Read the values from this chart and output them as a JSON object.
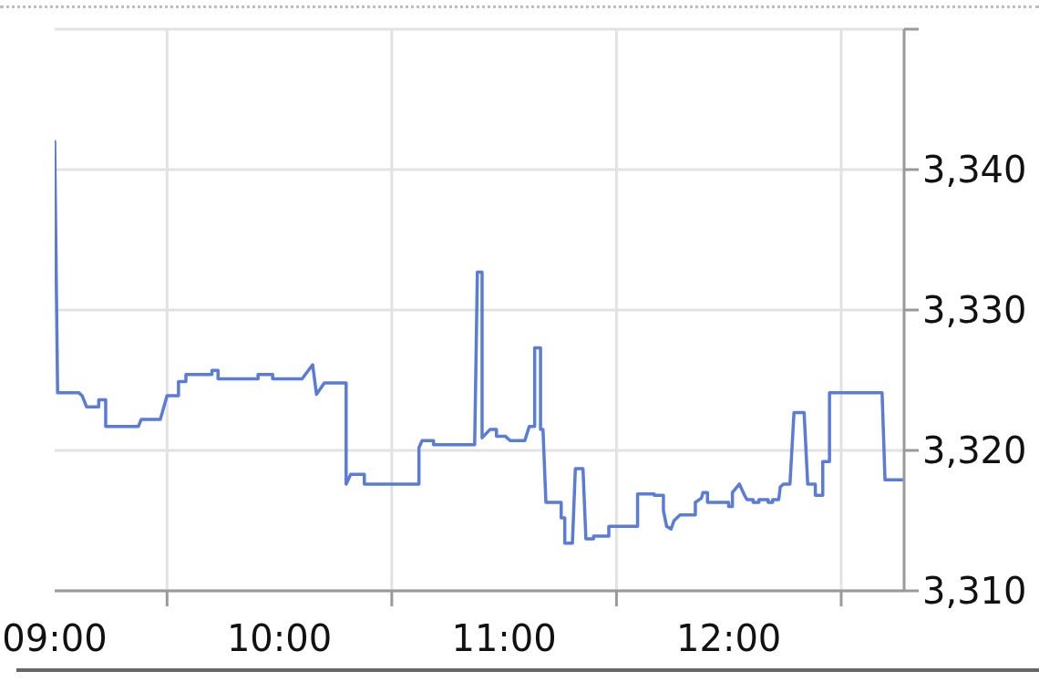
{
  "chart_data": {
    "type": "line",
    "color": "#5a7bd6",
    "marker": "none",
    "line_style": "solid",
    "grid": true,
    "x": [
      9.0,
      9.013,
      9.108,
      9.122,
      9.142,
      9.196,
      9.196,
      9.227,
      9.227,
      9.372,
      9.385,
      9.47,
      9.5,
      9.551,
      9.551,
      9.584,
      9.584,
      9.7,
      9.7,
      9.727,
      9.727,
      9.905,
      9.905,
      9.97,
      9.97,
      10.101,
      10.148,
      10.165,
      10.2,
      10.297,
      10.297,
      10.317,
      10.378,
      10.378,
      10.621,
      10.621,
      10.635,
      10.686,
      10.686,
      10.869,
      10.881,
      10.902,
      10.902,
      10.938,
      10.966,
      10.966,
      11.006,
      11.027,
      11.092,
      11.112,
      11.136,
      11.136,
      11.162,
      11.162,
      11.173,
      11.186,
      11.254,
      11.254,
      11.27,
      11.27,
      11.304,
      11.317,
      11.351,
      11.364,
      11.398,
      11.398,
      11.466,
      11.466,
      11.594,
      11.594,
      11.668,
      11.668,
      11.709,
      11.709,
      11.723,
      11.743,
      11.756,
      11.783,
      11.851,
      11.851,
      11.878,
      11.885,
      11.905,
      11.905,
      11.999,
      11.999,
      12.016,
      12.016,
      12.047,
      12.07,
      12.081,
      12.108,
      12.108,
      12.134,
      12.134,
      12.175,
      12.175,
      12.195,
      12.195,
      12.222,
      12.229,
      12.243,
      12.272,
      12.29,
      12.335,
      12.351,
      12.385,
      12.385,
      12.418,
      12.418,
      12.448,
      12.448,
      12.682,
      12.695,
      12.777
    ],
    "values": [
      3342.0,
      3324.1,
      3324.1,
      3323.9,
      3323.1,
      3323.1,
      3323.6,
      3323.6,
      3321.7,
      3321.7,
      3322.2,
      3322.2,
      3323.9,
      3323.9,
      3324.9,
      3324.9,
      3325.4,
      3325.4,
      3325.7,
      3325.7,
      3325.1,
      3325.1,
      3325.4,
      3325.4,
      3325.1,
      3325.1,
      3326.1,
      3324.0,
      3324.8,
      3324.8,
      3317.6,
      3318.3,
      3318.3,
      3317.6,
      3317.6,
      3320.2,
      3320.7,
      3320.7,
      3320.4,
      3320.4,
      3332.7,
      3332.7,
      3320.9,
      3321.5,
      3321.5,
      3321.0,
      3321.0,
      3320.7,
      3320.7,
      3321.7,
      3321.7,
      3327.3,
      3327.3,
      3321.5,
      3321.5,
      3316.3,
      3316.3,
      3315.2,
      3315.2,
      3313.4,
      3313.4,
      3318.7,
      3318.7,
      3313.7,
      3313.7,
      3313.9,
      3313.9,
      3314.6,
      3314.6,
      3316.9,
      3316.9,
      3316.8,
      3316.8,
      3315.7,
      3314.6,
      3314.4,
      3315.0,
      3315.4,
      3315.4,
      3316.3,
      3316.6,
      3317.0,
      3317.0,
      3316.3,
      3316.3,
      3316.0,
      3316.0,
      3317.0,
      3317.6,
      3316.8,
      3316.5,
      3316.5,
      3316.3,
      3316.3,
      3316.5,
      3316.5,
      3316.3,
      3316.3,
      3316.5,
      3316.5,
      3317.4,
      3317.6,
      3317.6,
      3322.7,
      3322.7,
      3317.6,
      3317.6,
      3316.8,
      3316.8,
      3319.2,
      3319.2,
      3324.1,
      3324.1,
      3317.9,
      3317.9
    ],
    "xlim": [
      9,
      12.78
    ],
    "xticks": [
      {
        "value": 9,
        "label": "09:00"
      },
      {
        "value": 9.5,
        "label": null
      },
      {
        "value": 10,
        "label": "10:00"
      },
      {
        "value": 10.5,
        "label": null
      },
      {
        "value": 11,
        "label": "11:00"
      },
      {
        "value": 11.5,
        "label": null
      },
      {
        "value": 12,
        "label": "12:00"
      },
      {
        "value": 12.5,
        "label": null
      }
    ],
    "ylim": [
      3310,
      3350
    ],
    "yticks": [
      {
        "value": 3310,
        "label": "3,310"
      },
      {
        "value": 3320,
        "label": "3,320"
      },
      {
        "value": 3330,
        "label": "3,330"
      },
      {
        "value": 3340,
        "label": "3,340"
      },
      {
        "value": 3350,
        "label": null
      }
    ]
  }
}
